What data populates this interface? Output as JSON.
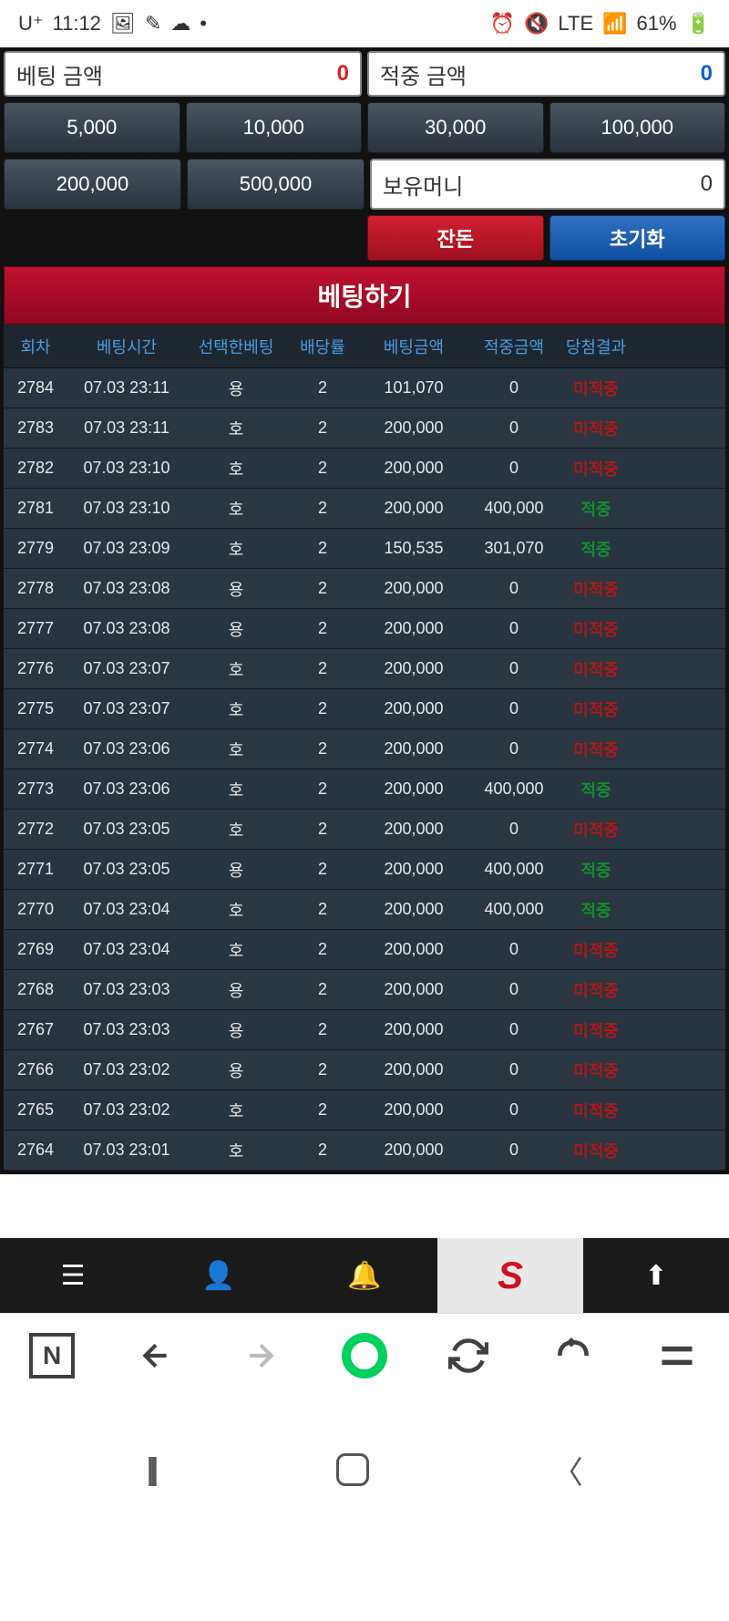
{
  "statusBar": {
    "carrier": "U⁺",
    "time": "11:12",
    "network": "LTE",
    "battery": "61%"
  },
  "betting": {
    "betAmountLabel": "베팅 금액",
    "betAmountValue": "0",
    "winAmountLabel": "적중 금액",
    "winAmountValue": "0",
    "quick": [
      "5,000",
      "10,000",
      "30,000",
      "100,000",
      "200,000",
      "500,000"
    ],
    "balanceLabel": "보유머니",
    "balanceValue": "0",
    "remainLabel": "잔돈",
    "resetLabel": "초기화",
    "placeBetLabel": "베팅하기"
  },
  "table": {
    "headers": [
      "회차",
      "베팅시간",
      "선택한베팅",
      "배당률",
      "베팅금액",
      "적중금액",
      "당첨결과"
    ],
    "resultMiss": "미적중",
    "resultHit": "적중",
    "rows": [
      {
        "round": "2784",
        "time": "07.03 23:11",
        "pick": "용",
        "odds": "2",
        "bet": "101,070",
        "win": "0",
        "result": "miss"
      },
      {
        "round": "2783",
        "time": "07.03 23:11",
        "pick": "호",
        "odds": "2",
        "bet": "200,000",
        "win": "0",
        "result": "miss"
      },
      {
        "round": "2782",
        "time": "07.03 23:10",
        "pick": "호",
        "odds": "2",
        "bet": "200,000",
        "win": "0",
        "result": "miss"
      },
      {
        "round": "2781",
        "time": "07.03 23:10",
        "pick": "호",
        "odds": "2",
        "bet": "200,000",
        "win": "400,000",
        "result": "hit"
      },
      {
        "round": "2779",
        "time": "07.03 23:09",
        "pick": "호",
        "odds": "2",
        "bet": "150,535",
        "win": "301,070",
        "result": "hit"
      },
      {
        "round": "2778",
        "time": "07.03 23:08",
        "pick": "용",
        "odds": "2",
        "bet": "200,000",
        "win": "0",
        "result": "miss"
      },
      {
        "round": "2777",
        "time": "07.03 23:08",
        "pick": "용",
        "odds": "2",
        "bet": "200,000",
        "win": "0",
        "result": "miss"
      },
      {
        "round": "2776",
        "time": "07.03 23:07",
        "pick": "호",
        "odds": "2",
        "bet": "200,000",
        "win": "0",
        "result": "miss"
      },
      {
        "round": "2775",
        "time": "07.03 23:07",
        "pick": "호",
        "odds": "2",
        "bet": "200,000",
        "win": "0",
        "result": "miss"
      },
      {
        "round": "2774",
        "time": "07.03 23:06",
        "pick": "호",
        "odds": "2",
        "bet": "200,000",
        "win": "0",
        "result": "miss"
      },
      {
        "round": "2773",
        "time": "07.03 23:06",
        "pick": "호",
        "odds": "2",
        "bet": "200,000",
        "win": "400,000",
        "result": "hit"
      },
      {
        "round": "2772",
        "time": "07.03 23:05",
        "pick": "호",
        "odds": "2",
        "bet": "200,000",
        "win": "0",
        "result": "miss"
      },
      {
        "round": "2771",
        "time": "07.03 23:05",
        "pick": "용",
        "odds": "2",
        "bet": "200,000",
        "win": "400,000",
        "result": "hit"
      },
      {
        "round": "2770",
        "time": "07.03 23:04",
        "pick": "호",
        "odds": "2",
        "bet": "200,000",
        "win": "400,000",
        "result": "hit"
      },
      {
        "round": "2769",
        "time": "07.03 23:04",
        "pick": "호",
        "odds": "2",
        "bet": "200,000",
        "win": "0",
        "result": "miss"
      },
      {
        "round": "2768",
        "time": "07.03 23:03",
        "pick": "용",
        "odds": "2",
        "bet": "200,000",
        "win": "0",
        "result": "miss"
      },
      {
        "round": "2767",
        "time": "07.03 23:03",
        "pick": "용",
        "odds": "2",
        "bet": "200,000",
        "win": "0",
        "result": "miss"
      },
      {
        "round": "2766",
        "time": "07.03 23:02",
        "pick": "용",
        "odds": "2",
        "bet": "200,000",
        "win": "0",
        "result": "miss"
      },
      {
        "round": "2765",
        "time": "07.03 23:02",
        "pick": "호",
        "odds": "2",
        "bet": "200,000",
        "win": "0",
        "result": "miss"
      },
      {
        "round": "2764",
        "time": "07.03 23:01",
        "pick": "호",
        "odds": "2",
        "bet": "200,000",
        "win": "0",
        "result": "miss"
      }
    ]
  },
  "bottomAppBar": {
    "logo": "S"
  },
  "browserBar": {
    "nLabel": "N"
  }
}
